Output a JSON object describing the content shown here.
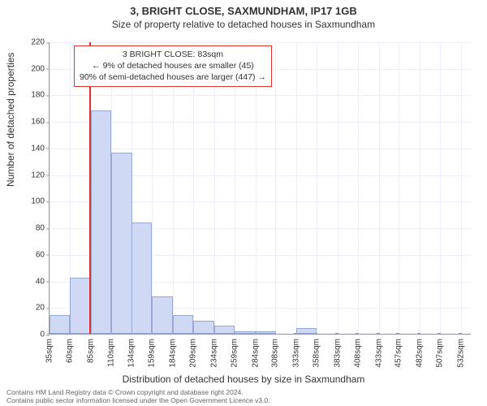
{
  "chart": {
    "type": "histogram",
    "title_line1": "3, BRIGHT CLOSE, SAXMUNDHAM, IP17 1GB",
    "title_line2": "Size of property relative to detached houses in Saxmundham",
    "title1_fontsize": 13,
    "title2_fontsize": 12,
    "ylabel": "Number of detached properties",
    "xlabel": "Distribution of detached houses by size in Saxmundham",
    "label_fontsize": 12,
    "tick_fontsize": 10,
    "background_color": "#ffffff",
    "grid_color": "#eef",
    "axis_color": "#999",
    "bar_fill": "#cfd9f3",
    "bar_stroke": "#9aa8d4",
    "marker_color": "#d33",
    "marker_x_value": 83,
    "ylim": [
      0,
      220
    ],
    "yticks": [
      0,
      20,
      40,
      60,
      80,
      100,
      120,
      140,
      160,
      180,
      200,
      220
    ],
    "xmin": 35,
    "xmax": 545,
    "xticks": [
      35,
      60,
      85,
      110,
      134,
      159,
      184,
      209,
      234,
      259,
      284,
      308,
      333,
      358,
      383,
      408,
      433,
      457,
      482,
      507,
      532
    ],
    "xtick_suffix": "sqm",
    "bar_bin_width": 25,
    "bars": [
      {
        "x": 35,
        "h": 14
      },
      {
        "x": 60,
        "h": 42
      },
      {
        "x": 85,
        "h": 168
      },
      {
        "x": 110,
        "h": 136
      },
      {
        "x": 134,
        "h": 84
      },
      {
        "x": 159,
        "h": 28
      },
      {
        "x": 184,
        "h": 14
      },
      {
        "x": 209,
        "h": 10
      },
      {
        "x": 234,
        "h": 6
      },
      {
        "x": 259,
        "h": 2
      },
      {
        "x": 284,
        "h": 2
      },
      {
        "x": 308,
        "h": 0
      },
      {
        "x": 333,
        "h": 4
      },
      {
        "x": 358,
        "h": 0
      },
      {
        "x": 383,
        "h": 0
      },
      {
        "x": 408,
        "h": 0
      },
      {
        "x": 433,
        "h": 0
      },
      {
        "x": 457,
        "h": 0
      },
      {
        "x": 482,
        "h": 0
      },
      {
        "x": 507,
        "h": 0
      }
    ],
    "annotation": {
      "line1": "3 BRIGHT CLOSE: 83sqm",
      "line2": "← 9% of detached houses are smaller (45)",
      "line3": "90% of semi-detached houses are larger (447) →",
      "border_color": "#d33",
      "fontsize": 10.5
    },
    "footer": {
      "line1": "Contains HM Land Registry data © Crown copyright and database right 2024.",
      "line2": "Contains public sector information licensed under the Open Government Licence v3.0.",
      "fontsize": 8.5,
      "color": "#666666"
    }
  }
}
